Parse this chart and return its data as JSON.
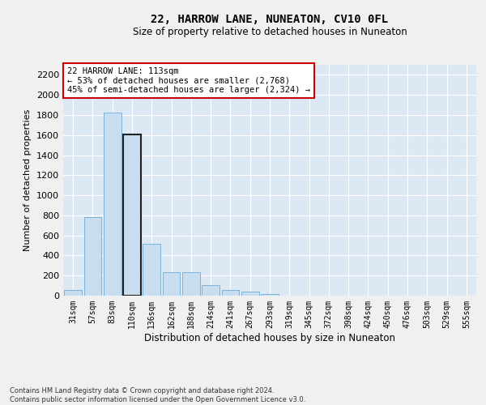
{
  "title": "22, HARROW LANE, NUNEATON, CV10 0FL",
  "subtitle": "Size of property relative to detached houses in Nuneaton",
  "xlabel": "Distribution of detached houses by size in Nuneaton",
  "ylabel": "Number of detached properties",
  "categories": [
    "31sqm",
    "57sqm",
    "83sqm",
    "110sqm",
    "136sqm",
    "162sqm",
    "188sqm",
    "214sqm",
    "241sqm",
    "267sqm",
    "293sqm",
    "319sqm",
    "345sqm",
    "372sqm",
    "398sqm",
    "424sqm",
    "450sqm",
    "476sqm",
    "503sqm",
    "529sqm",
    "555sqm"
  ],
  "values": [
    55,
    780,
    1820,
    1610,
    520,
    235,
    235,
    105,
    55,
    38,
    18,
    0,
    0,
    0,
    0,
    0,
    0,
    0,
    0,
    0,
    0
  ],
  "bar_color": "#c9ddf0",
  "bar_edge_color": "#7ab4d8",
  "highlight_bar_index": 3,
  "highlight_bar_edge_color": "#222222",
  "annotation_text": "22 HARROW LANE: 113sqm\n← 53% of detached houses are smaller (2,768)\n45% of semi-detached houses are larger (2,324) →",
  "annotation_box_color": "#ffffff",
  "annotation_box_edge_color": "#cc0000",
  "bg_color": "#dde8f5",
  "grid_color": "#ffffff",
  "ylim_max": 2300,
  "ytick_interval": 200,
  "footer_line1": "Contains HM Land Registry data © Crown copyright and database right 2024.",
  "footer_line2": "Contains public sector information licensed under the Open Government Licence v3.0."
}
